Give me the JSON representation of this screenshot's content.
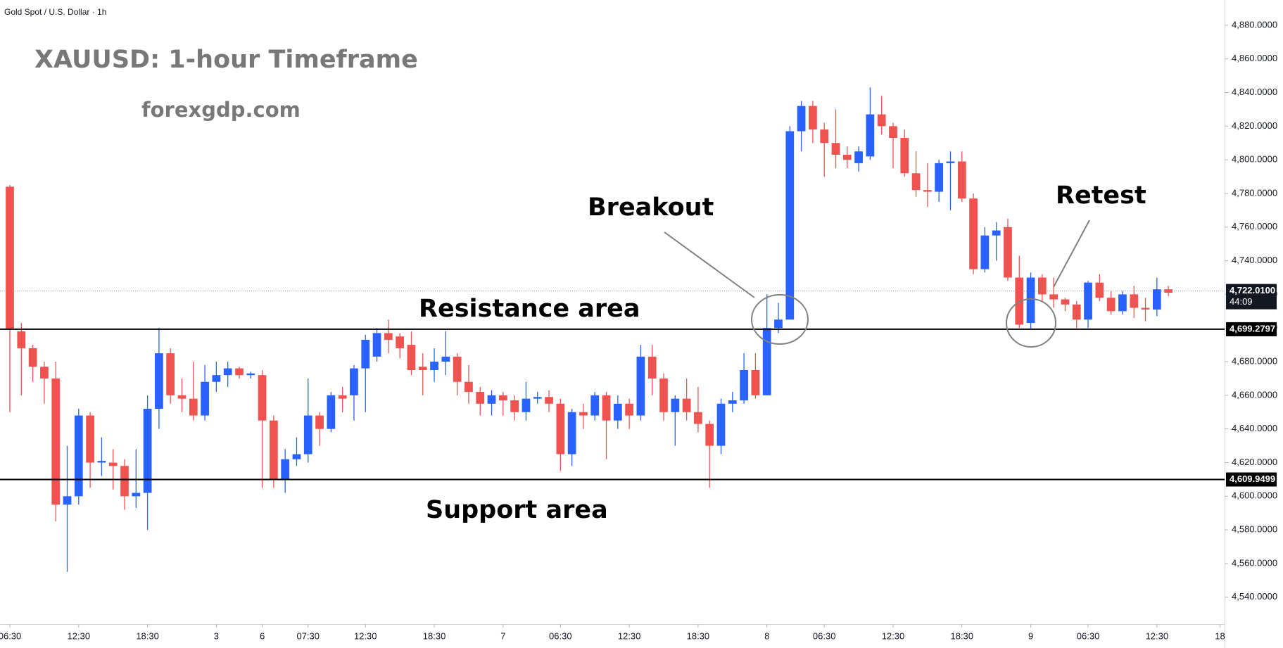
{
  "chart_data": {
    "type": "candlestick",
    "header": "Gold Spot / U.S. Dollar · 1h",
    "title": "XAUUSD: 1-hour Timeframe",
    "subtitle": "forexgdp.com",
    "annotations": {
      "breakout": "Breakout",
      "resistance": "Resistance area",
      "support": "Support area",
      "retest": "Retest"
    },
    "up_color": "#2962ff",
    "down_color": "#ef5350",
    "ohlc": {
      "open": [
        4784,
        4698,
        4688,
        4677,
        4670,
        4595,
        4600,
        4648,
        4620,
        4620,
        4618,
        4600,
        4602,
        4652,
        4685,
        4660,
        4658,
        4648,
        4668,
        4672,
        4676,
        4672,
        4672,
        4645,
        4610,
        4622,
        4625,
        4648,
        4640,
        4660,
        4660,
        4676,
        4683,
        4697,
        4695,
        4690,
        4677,
        4675,
        4680,
        4683,
        4668,
        4662,
        4655,
        4660,
        4657,
        4650,
        4658,
        4659,
        4655,
        4625,
        4650,
        4648,
        4660,
        4645,
        4655,
        4648,
        4683,
        4670,
        4650,
        4658,
        4650,
        4643,
        4630,
        4655,
        4657,
        4675,
        4660,
        4700,
        4705,
        4817,
        4832,
        4818,
        4810,
        4803,
        4798,
        4802,
        4827,
        4820,
        4813,
        4792,
        4782,
        4781,
        4798,
        4799,
        4777,
        4735,
        4755,
        4760,
        4730,
        4703,
        4730,
        4720,
        4717,
        4714,
        4705,
        4727,
        4718,
        4710,
        4720,
        4712,
        4711,
        4723
      ],
      "high": [
        4785,
        4703,
        4690,
        4680,
        4680,
        4630,
        4652,
        4650,
        4635,
        4628,
        4622,
        4628,
        4660,
        4700,
        4688,
        4670,
        4680,
        4678,
        4680,
        4680,
        4677,
        4674,
        4675,
        4648,
        4628,
        4635,
        4670,
        4650,
        4662,
        4665,
        4678,
        4696,
        4700,
        4705,
        4697,
        4698,
        4685,
        4688,
        4698,
        4685,
        4678,
        4665,
        4663,
        4662,
        4660,
        4668,
        4662,
        4663,
        4658,
        4652,
        4655,
        4662,
        4662,
        4660,
        4658,
        4690,
        4690,
        4673,
        4660,
        4670,
        4665,
        4645,
        4658,
        4662,
        4685,
        4685,
        4720,
        4715,
        4820,
        4835,
        4835,
        4822,
        4830,
        4808,
        4808,
        4843,
        4838,
        4822,
        4818,
        4805,
        4798,
        4800,
        4805,
        4805,
        4780,
        4760,
        4763,
        4765,
        4743,
        4733,
        4732,
        4730,
        4718,
        4716,
        4728,
        4732,
        4722,
        4722,
        4725,
        4718,
        4730,
        4725
      ],
      "low": [
        4650,
        4660,
        4668,
        4655,
        4585,
        4555,
        4595,
        4605,
        4612,
        4604,
        4592,
        4593,
        4580,
        4640,
        4655,
        4650,
        4645,
        4645,
        4662,
        4665,
        4670,
        4670,
        4605,
        4605,
        4602,
        4618,
        4620,
        4630,
        4638,
        4650,
        4645,
        4650,
        4680,
        4685,
        4682,
        4672,
        4660,
        4668,
        4672,
        4660,
        4655,
        4648,
        4648,
        4648,
        4645,
        4645,
        4655,
        4650,
        4615,
        4618,
        4640,
        4645,
        4622,
        4640,
        4640,
        4645,
        4660,
        4645,
        4630,
        4645,
        4638,
        4605,
        4625,
        4650,
        4655,
        4658,
        4660,
        4697,
        4705,
        4805,
        4810,
        4790,
        4795,
        4795,
        4793,
        4800,
        4815,
        4795,
        4790,
        4778,
        4772,
        4775,
        4770,
        4775,
        4732,
        4733,
        4740,
        4728,
        4700,
        4699,
        4716,
        4712,
        4710,
        4700,
        4700,
        4716,
        4708,
        4708,
        4706,
        4704,
        4707,
        4719
      ],
      "close": [
        4699,
        4688,
        4677,
        4670,
        4595,
        4600,
        4648,
        4620,
        4621,
        4618,
        4600,
        4602,
        4652,
        4685,
        4660,
        4658,
        4648,
        4668,
        4672,
        4676,
        4672,
        4673,
        4645,
        4610,
        4622,
        4625,
        4648,
        4640,
        4660,
        4658,
        4676,
        4693,
        4697,
        4693,
        4688,
        4675,
        4675,
        4680,
        4683,
        4668,
        4662,
        4655,
        4660,
        4657,
        4650,
        4658,
        4659,
        4655,
        4625,
        4650,
        4648,
        4660,
        4645,
        4655,
        4648,
        4683,
        4670,
        4650,
        4658,
        4650,
        4643,
        4630,
        4655,
        4657,
        4675,
        4660,
        4700,
        4705,
        4817,
        4832,
        4818,
        4810,
        4803,
        4800,
        4805,
        4827,
        4820,
        4813,
        4792,
        4782,
        4781,
        4798,
        4799,
        4777,
        4735,
        4755,
        4758,
        4730,
        4702,
        4730,
        4720,
        4717,
        4714,
        4705,
        4727,
        4718,
        4710,
        4720,
        4712,
        4711,
        4723,
        4721
      ]
    },
    "xlim": [
      -0.86,
      105.9
    ],
    "xticks": [
      {
        "value": 0,
        "label": "06:30"
      },
      {
        "value": 6,
        "label": "12:30"
      },
      {
        "value": 12,
        "label": "18:30"
      },
      {
        "value": 18,
        "label": "3"
      },
      {
        "value": 22,
        "label": "6"
      },
      {
        "value": 26,
        "label": "07:30"
      },
      {
        "value": 31,
        "label": "12:30"
      },
      {
        "value": 37,
        "label": "18:30"
      },
      {
        "value": 43,
        "label": "7"
      },
      {
        "value": 48,
        "label": "06:30"
      },
      {
        "value": 54,
        "label": "12:30"
      },
      {
        "value": 60,
        "label": "18:30"
      },
      {
        "value": 66,
        "label": "8"
      },
      {
        "value": 71,
        "label": "06:30"
      },
      {
        "value": 77,
        "label": "12:30"
      },
      {
        "value": 83,
        "label": "18:30"
      },
      {
        "value": 89,
        "label": "9"
      },
      {
        "value": 94,
        "label": "06:30"
      },
      {
        "value": 100,
        "label": "12:30"
      },
      {
        "value": 105.5,
        "label": "18"
      }
    ],
    "ylim": [
      4524,
      4895
    ],
    "yticks": [
      {
        "value": 4540,
        "label": "4,540.0000"
      },
      {
        "value": 4560,
        "label": "4,560.0000"
      },
      {
        "value": 4580,
        "label": "4,580.0000"
      },
      {
        "value": 4600,
        "label": "4,600.0000"
      },
      {
        "value": 4620,
        "label": "4,620.0000"
      },
      {
        "value": 4640,
        "label": "4,640.0000"
      },
      {
        "value": 4660,
        "label": "4,660.0000"
      },
      {
        "value": 4680,
        "label": "4,680.0000"
      },
      {
        "value": 4700,
        "label": "4,700.0000"
      },
      {
        "value": 4720,
        "label": "4,720.0000"
      },
      {
        "value": 4740,
        "label": "4,740.0000"
      },
      {
        "value": 4760,
        "label": "4,760.0000"
      },
      {
        "value": 4780,
        "label": "4,780.0000"
      },
      {
        "value": 4800,
        "label": "4,800.0000"
      },
      {
        "value": 4820,
        "label": "4,820.0000"
      },
      {
        "value": 4840,
        "label": "4,840.0000"
      },
      {
        "value": 4860,
        "label": "4,860.0000"
      },
      {
        "value": 4880,
        "label": "4,880.0000"
      }
    ],
    "levels": [
      {
        "value": 4699.2797,
        "label": "4,699.2797"
      },
      {
        "value": 4609.9499,
        "label": "4,609.9499"
      }
    ],
    "last_price": {
      "value": 4722.01,
      "label": "4,722.0100"
    },
    "countdown": "44:09"
  }
}
